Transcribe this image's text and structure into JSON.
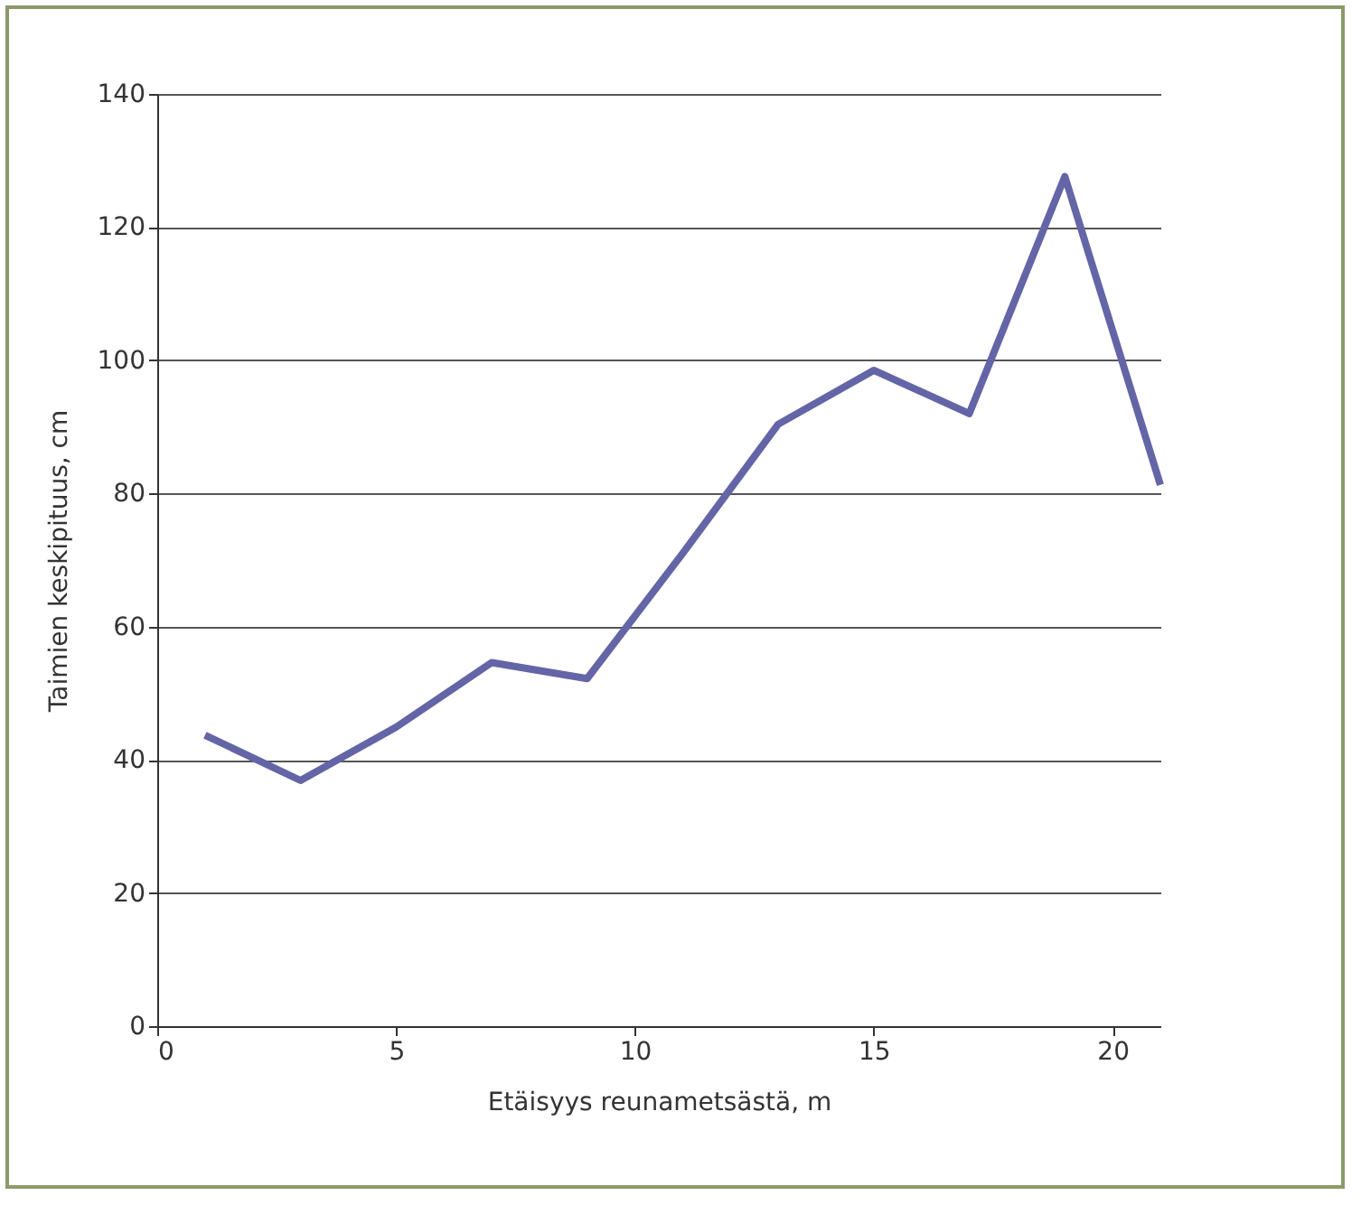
{
  "chart_data": {
    "type": "line",
    "xlabel": "Etäisyys reunametsästä, m",
    "ylabel": "Taimien keskipituus, cm",
    "x": [
      1,
      3,
      5,
      7,
      9,
      11,
      13,
      15,
      17,
      19,
      21
    ],
    "series": [
      {
        "color": "#6465a6",
        "values": [
          43.7,
          36.9,
          44.9,
          54.6,
          52.2,
          71,
          90.4,
          98.5,
          92,
          127.6,
          81.3
        ]
      }
    ],
    "xlim": [
      0,
      21
    ],
    "xticks": [
      0,
      5,
      10,
      15,
      20
    ],
    "ylim": [
      0,
      140
    ],
    "yticks": [
      0,
      20,
      40,
      60,
      80,
      100,
      120,
      140
    ],
    "grid": "y",
    "marker": "none",
    "line_style": "solid"
  }
}
